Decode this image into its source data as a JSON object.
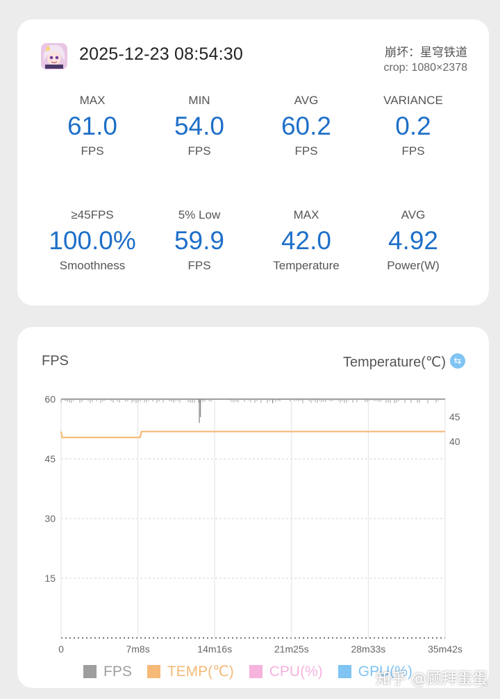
{
  "header": {
    "datetime": "2025-12-23 08:54:30",
    "game": "崩坏：星穹铁道",
    "crop": "crop: 1080×2378",
    "app_icon": "game-avatar-icon"
  },
  "stats": [
    {
      "label": "MAX",
      "value": "61.0",
      "unit": "FPS"
    },
    {
      "label": "MIN",
      "value": "54.0",
      "unit": "FPS"
    },
    {
      "label": "AVG",
      "value": "60.2",
      "unit": "FPS"
    },
    {
      "label": "VARIANCE",
      "value": "0.2",
      "unit": "FPS"
    },
    {
      "label": "≥45FPS",
      "value": "100.0%",
      "unit": "Smoothness"
    },
    {
      "label": "5% Low",
      "value": "59.9",
      "unit": "FPS"
    },
    {
      "label": "MAX",
      "value": "42.0",
      "unit": "Temperature"
    },
    {
      "label": "AVG",
      "value": "4.92",
      "unit": "Power(W)"
    }
  ],
  "chart_panel": {
    "left_title": "FPS",
    "right_title": "Temperature(℃)",
    "swap_icon": "swap-arrows-icon"
  },
  "chart_data": {
    "type": "line",
    "x_ticks": [
      "0",
      "7m8s",
      "14m16s",
      "21m25s",
      "28m33s",
      "35m42s"
    ],
    "x_range_s": [
      0,
      2142
    ],
    "y_left_ticks": [
      "60",
      "45",
      "30",
      "15"
    ],
    "y_left_range": [
      0,
      60
    ],
    "y_right_ticks": [
      "45",
      "40"
    ],
    "y_right_range": [
      0,
      48.6
    ],
    "grid": true,
    "series": [
      {
        "name": "FPS",
        "color": "#9e9e9e",
        "axis": "left",
        "baseline": 60,
        "dips": [
          {
            "t": 771,
            "value": 54
          },
          {
            "t": 777,
            "value": 55.5
          },
          {
            "t": 1180,
            "value": 59
          }
        ]
      },
      {
        "name": "TEMP(℃)",
        "color": "#f5b978",
        "axis": "right",
        "points": [
          [
            0,
            42
          ],
          [
            6,
            40.8
          ],
          [
            440,
            40.8
          ],
          [
            448,
            42
          ],
          [
            2142,
            42
          ]
        ]
      }
    ]
  },
  "legend": [
    {
      "label": "FPS",
      "color": "#9e9e9e"
    },
    {
      "label": "TEMP(℃)",
      "color": "#f5b978"
    },
    {
      "label": "CPU(%)",
      "color": "#f5b3dd"
    },
    {
      "label": "GPU(%)",
      "color": "#7fc4f2"
    }
  ],
  "watermark": "知乎 @顾拜蛋蛋"
}
